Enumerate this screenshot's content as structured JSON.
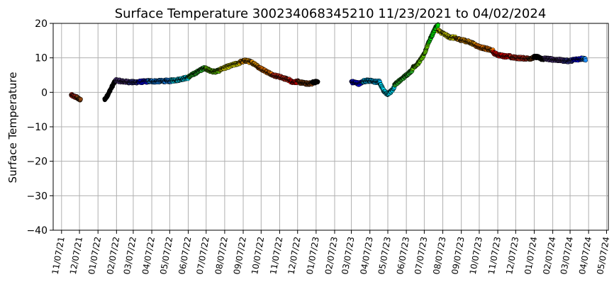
{
  "chart_data": {
    "type": "scatter",
    "title": "Surface Temperature 300234068345210  11/23/2021 to 04/02/2024",
    "xlabel": "",
    "ylabel": "Surface Temperature",
    "ylim": [
      -40,
      20
    ],
    "yticks": [
      -40,
      -30,
      -20,
      -10,
      0,
      10,
      20
    ],
    "xlim": [
      "2021-10-24",
      "2024-05-10"
    ],
    "xticks": [
      "2021-11-07",
      "2021-12-07",
      "2022-01-07",
      "2022-02-07",
      "2022-03-07",
      "2022-04-07",
      "2022-05-07",
      "2022-06-07",
      "2022-07-07",
      "2022-08-07",
      "2022-09-07",
      "2022-10-07",
      "2022-11-07",
      "2022-12-07",
      "2023-01-07",
      "2023-02-07",
      "2023-03-07",
      "2023-04-07",
      "2023-05-07",
      "2023-06-07",
      "2023-07-07",
      "2023-08-07",
      "2023-09-07",
      "2023-10-07",
      "2023-11-07",
      "2023-12-07",
      "2024-01-07",
      "2024-02-07",
      "2024-03-07",
      "2024-04-07",
      "2024-05-07"
    ],
    "xtick_labels": [
      "11/07/21",
      "12/07/21",
      "01/07/22",
      "02/07/22",
      "03/07/22",
      "04/07/22",
      "05/07/22",
      "06/07/22",
      "07/07/22",
      "08/07/22",
      "09/07/22",
      "10/07/22",
      "11/07/22",
      "12/07/22",
      "01/07/23",
      "02/07/23",
      "03/07/23",
      "04/07/23",
      "05/07/23",
      "06/07/23",
      "07/07/23",
      "08/07/23",
      "09/07/23",
      "10/07/23",
      "11/07/23",
      "12/07/23",
      "01/07/24",
      "02/07/24",
      "03/07/24",
      "04/07/24",
      "05/07/24"
    ],
    "grid": true,
    "legend": "none",
    "series": [
      {
        "color": "#d7301f",
        "x": [
          "2021-11-23",
          "2021-11-28",
          "2021-12-03"
        ],
        "y": [
          -0.8,
          -1.2,
          -1.5
        ]
      },
      {
        "color": "#8b4513",
        "x": [
          "2021-12-03",
          "2021-12-06",
          "2021-12-09"
        ],
        "y": [
          -1.5,
          -2.0,
          -2.2
        ]
      },
      {
        "color": "#000000",
        "x": [
          "2022-01-18",
          "2022-01-21",
          "2022-01-24",
          "2022-01-27",
          "2022-01-30",
          "2022-02-02",
          "2022-02-06"
        ],
        "y": [
          -2.0,
          -1.5,
          -0.5,
          0.5,
          1.5,
          2.5,
          3.5
        ]
      },
      {
        "color": "#5a3d8a",
        "x": [
          "2022-02-06",
          "2022-02-12",
          "2022-02-20",
          "2022-02-28"
        ],
        "y": [
          3.5,
          3.3,
          3.1,
          3.0
        ]
      },
      {
        "color": "#3a3aa0",
        "x": [
          "2022-02-28",
          "2022-03-08",
          "2022-03-16"
        ],
        "y": [
          3.0,
          2.9,
          3.0
        ]
      },
      {
        "color": "#0000ff",
        "x": [
          "2022-03-16",
          "2022-03-24",
          "2022-04-01"
        ],
        "y": [
          3.0,
          3.1,
          3.2
        ]
      },
      {
        "color": "#1e90ff",
        "x": [
          "2022-04-01",
          "2022-04-15",
          "2022-05-01",
          "2022-05-10"
        ],
        "y": [
          3.2,
          3.2,
          3.3,
          3.3
        ]
      },
      {
        "color": "#00e5ff",
        "x": [
          "2022-05-10",
          "2022-05-20",
          "2022-05-30",
          "2022-06-08"
        ],
        "y": [
          3.4,
          3.6,
          4.0,
          4.3
        ]
      },
      {
        "color": "#2db82d",
        "x": [
          "2022-06-08",
          "2022-06-18",
          "2022-06-28",
          "2022-07-06"
        ],
        "y": [
          4.5,
          5.5,
          6.5,
          7.2
        ]
      },
      {
        "color": "#66cc00",
        "x": [
          "2022-07-06",
          "2022-07-14",
          "2022-07-22",
          "2022-07-30"
        ],
        "y": [
          7.0,
          6.2,
          6.0,
          6.4
        ]
      },
      {
        "color": "#ffff00",
        "x": [
          "2022-07-30",
          "2022-08-10",
          "2022-08-22",
          "2022-09-02"
        ],
        "y": [
          6.6,
          7.3,
          8.0,
          8.6
        ]
      },
      {
        "color": "#ffa500",
        "x": [
          "2022-09-02",
          "2022-09-12",
          "2022-09-22",
          "2022-10-02"
        ],
        "y": [
          8.8,
          9.2,
          8.6,
          7.6
        ]
      },
      {
        "color": "#ff7f00",
        "x": [
          "2022-10-02",
          "2022-10-10",
          "2022-10-18",
          "2022-10-26"
        ],
        "y": [
          7.2,
          6.6,
          5.8,
          5.2
        ]
      },
      {
        "color": "#d7301f",
        "x": [
          "2022-10-26",
          "2022-11-05",
          "2022-11-15",
          "2022-11-25"
        ],
        "y": [
          5.0,
          4.6,
          4.0,
          3.5
        ]
      },
      {
        "color": "#ff0000",
        "x": [
          "2022-11-25",
          "2022-12-01",
          "2022-12-08"
        ],
        "y": [
          3.2,
          3.0,
          3.1
        ]
      },
      {
        "color": "#8b4513",
        "x": [
          "2022-12-08",
          "2022-12-16",
          "2022-12-24",
          "2022-12-31"
        ],
        "y": [
          3.0,
          2.7,
          2.5,
          2.6
        ]
      },
      {
        "color": "#000000",
        "x": [
          "2022-12-31",
          "2023-01-05",
          "2023-01-10"
        ],
        "y": [
          2.8,
          3.0,
          3.0
        ]
      },
      {
        "color": "#0000ff",
        "x": [
          "2023-03-07",
          "2023-03-14",
          "2023-03-20",
          "2023-03-26"
        ],
        "y": [
          3.0,
          2.8,
          2.5,
          3.0
        ]
      },
      {
        "color": "#00bfff",
        "x": [
          "2023-03-26",
          "2023-04-04",
          "2023-04-14",
          "2023-04-24"
        ],
        "y": [
          3.2,
          3.4,
          3.1,
          3.0
        ]
      },
      {
        "color": "#00e5ff",
        "x": [
          "2023-04-24",
          "2023-04-30",
          "2023-05-06",
          "2023-05-12",
          "2023-05-18"
        ],
        "y": [
          2.5,
          0.5,
          -0.5,
          0.2,
          1.5
        ]
      },
      {
        "color": "#2db82d",
        "x": [
          "2023-05-18",
          "2023-05-28",
          "2023-06-07",
          "2023-06-17"
        ],
        "y": [
          2.2,
          3.5,
          5.0,
          6.5
        ]
      },
      {
        "color": "#66cc00",
        "x": [
          "2023-06-17",
          "2023-06-27",
          "2023-07-07",
          "2023-07-14"
        ],
        "y": [
          7.0,
          8.5,
          11.0,
          14.5
        ]
      },
      {
        "color": "#00e600",
        "x": [
          "2023-07-14",
          "2023-07-20",
          "2023-07-25",
          "2023-07-30"
        ],
        "y": [
          14.5,
          16.5,
          18.5,
          19.5
        ]
      },
      {
        "color": "#ffff00",
        "x": [
          "2023-07-30",
          "2023-08-08",
          "2023-08-18",
          "2023-08-28"
        ],
        "y": [
          18.0,
          17.0,
          16.0,
          15.8
        ]
      },
      {
        "color": "#ffa500",
        "x": [
          "2023-08-28",
          "2023-09-08",
          "2023-09-20",
          "2023-10-01"
        ],
        "y": [
          15.6,
          15.2,
          14.6,
          13.8
        ]
      },
      {
        "color": "#ff7f00",
        "x": [
          "2023-10-01",
          "2023-10-10",
          "2023-10-20",
          "2023-10-30"
        ],
        "y": [
          13.6,
          13.0,
          12.6,
          12.0
        ]
      },
      {
        "color": "#ff0000",
        "x": [
          "2023-10-30",
          "2023-11-08",
          "2023-11-18",
          "2023-11-28"
        ],
        "y": [
          11.5,
          10.8,
          10.5,
          10.4
        ]
      },
      {
        "color": "#d7301f",
        "x": [
          "2023-11-28",
          "2023-12-08",
          "2023-12-18",
          "2023-12-28"
        ],
        "y": [
          10.2,
          10.0,
          9.9,
          9.8
        ]
      },
      {
        "color": "#8b4513",
        "x": [
          "2023-12-28",
          "2024-01-02",
          "2024-01-06"
        ],
        "y": [
          9.8,
          9.9,
          10.0
        ]
      },
      {
        "color": "#000000",
        "x": [
          "2024-01-06",
          "2024-01-12",
          "2024-01-18",
          "2024-01-24"
        ],
        "y": [
          10.2,
          10.3,
          9.8,
          9.6
        ]
      },
      {
        "color": "#5a3d8a",
        "x": [
          "2024-01-24",
          "2024-02-04",
          "2024-02-15",
          "2024-02-26"
        ],
        "y": [
          9.8,
          9.6,
          9.4,
          9.2
        ]
      },
      {
        "color": "#3a3aa0",
        "x": [
          "2024-02-26",
          "2024-03-04",
          "2024-03-12"
        ],
        "y": [
          9.2,
          9.1,
          9.3
        ]
      },
      {
        "color": "#0000ff",
        "x": [
          "2024-03-12",
          "2024-03-20",
          "2024-03-28"
        ],
        "y": [
          9.4,
          9.6,
          9.8
        ]
      },
      {
        "color": "#1e90ff",
        "x": [
          "2024-03-28",
          "2024-04-02"
        ],
        "y": [
          9.8,
          9.6
        ]
      }
    ]
  }
}
